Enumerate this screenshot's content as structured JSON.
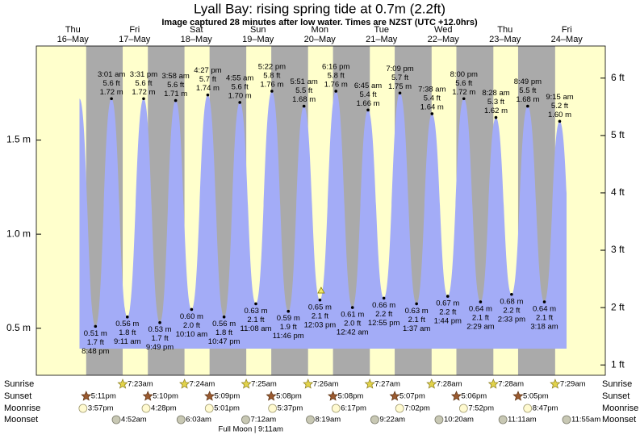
{
  "chart_data": {
    "type": "tide",
    "title": "Lyall Bay: rising  spring tide at 0.7m (2.2ft)",
    "subtitle": "Image captured 28 minutes after low water. Times are NZST (UTC +12.0hrs)",
    "ylim": [
      0.25,
      2.0
    ],
    "yticks": [
      {
        "value": 0.5,
        "label": "0.5 m"
      },
      {
        "value": 1.0,
        "label": "1.0 m"
      },
      {
        "value": 1.5,
        "label": "1.5 m"
      }
    ],
    "y2lim": [
      0.82,
      6.56
    ],
    "y2ticks": [
      {
        "value": 1,
        "label": "1 ft"
      },
      {
        "value": 2,
        "label": "2 ft"
      },
      {
        "value": 3,
        "label": "3 ft"
      },
      {
        "value": 4,
        "label": "4 ft"
      },
      {
        "value": 5,
        "label": "5 ft"
      },
      {
        "value": 6,
        "label": "6 ft"
      }
    ],
    "area_color": "#a3acf7",
    "day_color": "#ffffcc",
    "night_color": "#aaaaaa",
    "header_color": "#dd0000",
    "marker": {
      "value": 0.7
    },
    "row_labels": {
      "sunrise": "Sunrise",
      "sunset": "Sunset",
      "moonrise": "Moonrise",
      "moonset": "Moonset"
    },
    "days": [
      {
        "name": "Thu",
        "date": "16–May",
        "sunrise": null,
        "sunset": "5:11pm",
        "moonrise": "3:57pm",
        "moonset": null,
        "tides": [
          {
            "time": "8:48 pm",
            "value": 0.51,
            "value_label": "0.51 m",
            "ft_label": "1.7 ft"
          }
        ]
      },
      {
        "name": "Fri",
        "date": "17–May",
        "sunrise": "7:23am",
        "sunset": "5:10pm",
        "moonrise": "4:28pm",
        "moonset": "4:52am",
        "tides": [
          {
            "time": "3:01 am",
            "value": 1.72,
            "value_label": "1.72 m",
            "ft_label": "5.6 ft"
          },
          {
            "time": "9:11 am",
            "value": 0.56,
            "value_label": "0.56 m",
            "ft_label": "1.8 ft"
          },
          {
            "time": "3:31 pm",
            "value": 1.72,
            "value_label": "1.72 m",
            "ft_label": "5.6 ft"
          },
          {
            "time": "9:49 pm",
            "value": 0.53,
            "value_label": "0.53 m",
            "ft_label": "1.7 ft"
          }
        ]
      },
      {
        "name": "Sat",
        "date": "18–May",
        "sunrise": "7:24am",
        "sunset": "5:09pm",
        "moonrise": "5:01pm",
        "moonset": "6:03am",
        "tides": [
          {
            "time": "3:58 am",
            "value": 1.71,
            "value_label": "1.71 m",
            "ft_label": "5.6 ft"
          },
          {
            "time": "10:10 am",
            "value": 0.6,
            "value_label": "0.60 m",
            "ft_label": "2.0 ft"
          },
          {
            "time": "4:27 pm",
            "value": 1.74,
            "value_label": "1.74 m",
            "ft_label": "5.7 ft"
          },
          {
            "time": "10:47 pm",
            "value": 0.56,
            "value_label": "0.56 m",
            "ft_label": "1.8 ft"
          }
        ]
      },
      {
        "name": "Sun",
        "date": "19–May",
        "sunrise": "7:25am",
        "sunset": "5:08pm",
        "moonrise": "5:37pm",
        "moonset": "7:12am",
        "phase": "Full Moon | 9:11am",
        "tides": [
          {
            "time": "4:55 am",
            "value": 1.7,
            "value_label": "1.70 m",
            "ft_label": "5.6 ft"
          },
          {
            "time": "11:08 am",
            "value": 0.63,
            "value_label": "0.63 m",
            "ft_label": "2.1 ft"
          },
          {
            "time": "5:22 pm",
            "value": 1.76,
            "value_label": "1.76 m",
            "ft_label": "5.8 ft"
          },
          {
            "time": "11:46 pm",
            "value": 0.59,
            "value_label": "0.59 m",
            "ft_label": "1.9 ft"
          }
        ]
      },
      {
        "name": "Mon",
        "date": "20–May",
        "sunrise": "7:26am",
        "sunset": "5:08pm",
        "moonrise": "6:17pm",
        "moonset": "8:19am",
        "tides": [
          {
            "time": "5:51 am",
            "value": 1.68,
            "value_label": "1.68 m",
            "ft_label": "5.5 ft"
          },
          {
            "time": "12:03 pm",
            "value": 0.65,
            "value_label": "0.65 m",
            "ft_label": "2.1 ft"
          },
          {
            "time": "6:16 pm",
            "value": 1.76,
            "value_label": "1.76 m",
            "ft_label": "5.8 ft"
          }
        ]
      },
      {
        "name": "Tue",
        "date": "21–May",
        "sunrise": "7:27am",
        "sunset": "5:07pm",
        "moonrise": "7:02pm",
        "moonset": "9:22am",
        "tides": [
          {
            "time": "12:42 am",
            "value": 0.61,
            "value_label": "0.61 m",
            "ft_label": "2.0 ft"
          },
          {
            "time": "6:45 am",
            "value": 1.66,
            "value_label": "1.66 m",
            "ft_label": "5.4 ft"
          },
          {
            "time": "12:55 pm",
            "value": 0.66,
            "value_label": "0.66 m",
            "ft_label": "2.2 ft"
          },
          {
            "time": "7:09 pm",
            "value": 1.75,
            "value_label": "1.75 m",
            "ft_label": "5.7 ft"
          }
        ]
      },
      {
        "name": "Wed",
        "date": "22–May",
        "sunrise": "7:28am",
        "sunset": "5:06pm",
        "moonrise": "7:52pm",
        "moonset": "10:20am",
        "tides": [
          {
            "time": "1:37 am",
            "value": 0.63,
            "value_label": "0.63 m",
            "ft_label": "2.1 ft"
          },
          {
            "time": "7:38 am",
            "value": 1.64,
            "value_label": "1.64 m",
            "ft_label": "5.4 ft"
          },
          {
            "time": "1:44 pm",
            "value": 0.67,
            "value_label": "0.67 m",
            "ft_label": "2.2 ft"
          },
          {
            "time": "8:00 pm",
            "value": 1.72,
            "value_label": "1.72 m",
            "ft_label": "5.6 ft"
          }
        ]
      },
      {
        "name": "Thu",
        "date": "23–May",
        "sunrise": "7:28am",
        "sunset": "5:05pm",
        "moonrise": "8:47pm",
        "moonset": "11:11am",
        "tides": [
          {
            "time": "2:29 am",
            "value": 0.64,
            "value_label": "0.64 m",
            "ft_label": "2.1 ft"
          },
          {
            "time": "8:28 am",
            "value": 1.62,
            "value_label": "1.62 m",
            "ft_label": "5.3 ft"
          },
          {
            "time": "2:33 pm",
            "value": 0.68,
            "value_label": "0.68 m",
            "ft_label": "2.2 ft"
          },
          {
            "time": "8:49 pm",
            "value": 1.68,
            "value_label": "1.68 m",
            "ft_label": "5.5 ft"
          }
        ]
      },
      {
        "name": "Fri",
        "date": "24–May",
        "sunrise": "7:29am",
        "sunset": null,
        "moonrise": null,
        "moonset": "11:55am",
        "tides": [
          {
            "time": "3:18 am",
            "value": 0.64,
            "value_label": "0.64 m",
            "ft_label": "2.1 ft"
          },
          {
            "time": "9:15 am",
            "value": 1.6,
            "value_label": "1.60 m",
            "ft_label": "5.2 ft"
          }
        ]
      }
    ]
  }
}
